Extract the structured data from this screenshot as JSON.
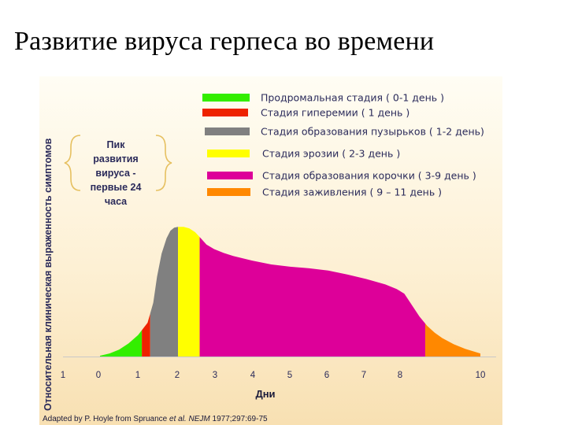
{
  "slide": {
    "title": "Развитие вируса герпеса во времени"
  },
  "chart_data": {
    "type": "area",
    "ylabel": "Относительная клиническая выраженность симптомов",
    "xlabel": "Дни",
    "x_ticks": [
      "1",
      "0",
      "1",
      "2",
      "3",
      "4",
      "5",
      "6",
      "7",
      "8",
      "10"
    ],
    "ylim": [
      0,
      1
    ],
    "grid": false,
    "legend_position": "top-right",
    "curve": {
      "x": [
        0,
        0.25,
        0.5,
        0.75,
        1.0,
        1.25,
        1.4,
        1.5,
        1.62,
        1.75,
        1.85,
        1.95,
        2.05,
        2.2,
        2.35,
        2.5,
        2.65,
        2.8,
        3.0,
        3.25,
        3.5,
        4.0,
        4.5,
        5.0,
        5.5,
        6.0,
        6.5,
        7.0,
        7.5,
        7.8,
        8.0,
        8.2,
        8.4,
        8.6,
        8.8,
        9.0,
        9.3,
        9.6,
        10.0
      ],
      "y": [
        0.005,
        0.02,
        0.045,
        0.085,
        0.14,
        0.22,
        0.35,
        0.52,
        0.67,
        0.77,
        0.82,
        0.84,
        0.845,
        0.845,
        0.835,
        0.81,
        0.77,
        0.73,
        0.7,
        0.675,
        0.655,
        0.625,
        0.6,
        0.585,
        0.575,
        0.56,
        0.535,
        0.505,
        0.47,
        0.44,
        0.41,
        0.335,
        0.26,
        0.2,
        0.155,
        0.12,
        0.08,
        0.05,
        0.02
      ]
    },
    "stages": [
      {
        "label": "Продромальная стадия ( 0-1 день )",
        "color": "#33ee00",
        "x_start": 0.0,
        "x_end": 1.1
      },
      {
        "label": "Стадия гиперемии ( 1 день )",
        "color": "#ee2200",
        "x_start": 1.1,
        "x_end": 1.32
      },
      {
        "label": "Стадия образования пузырьков ( 1-2 день)",
        "color": "#808080",
        "x_start": 1.32,
        "x_end": 2.05
      },
      {
        "label": "Стадия эрозии  ( 2-3 день )",
        "color": "#ffff00",
        "x_start": 2.05,
        "x_end": 2.62
      },
      {
        "label": "Стадия образования корочки ( 3-9 день )",
        "color": "#dd0099",
        "x_start": 2.62,
        "x_end": 8.55
      },
      {
        "label": "Стадия заживления ( 9 – 11 день )",
        "color": "#ff8800",
        "x_start": 8.55,
        "x_end": 10.0
      }
    ],
    "annotation": {
      "lines": [
        "Пик",
        "развития",
        "вируса  -",
        "первые 24",
        "часа"
      ]
    },
    "source": {
      "prefix": "Adapted by P. Hoyle from Spruance ",
      "etal": "et al. ",
      "journal": "NEJM",
      "suffix": " 1977;297:69-75"
    }
  }
}
